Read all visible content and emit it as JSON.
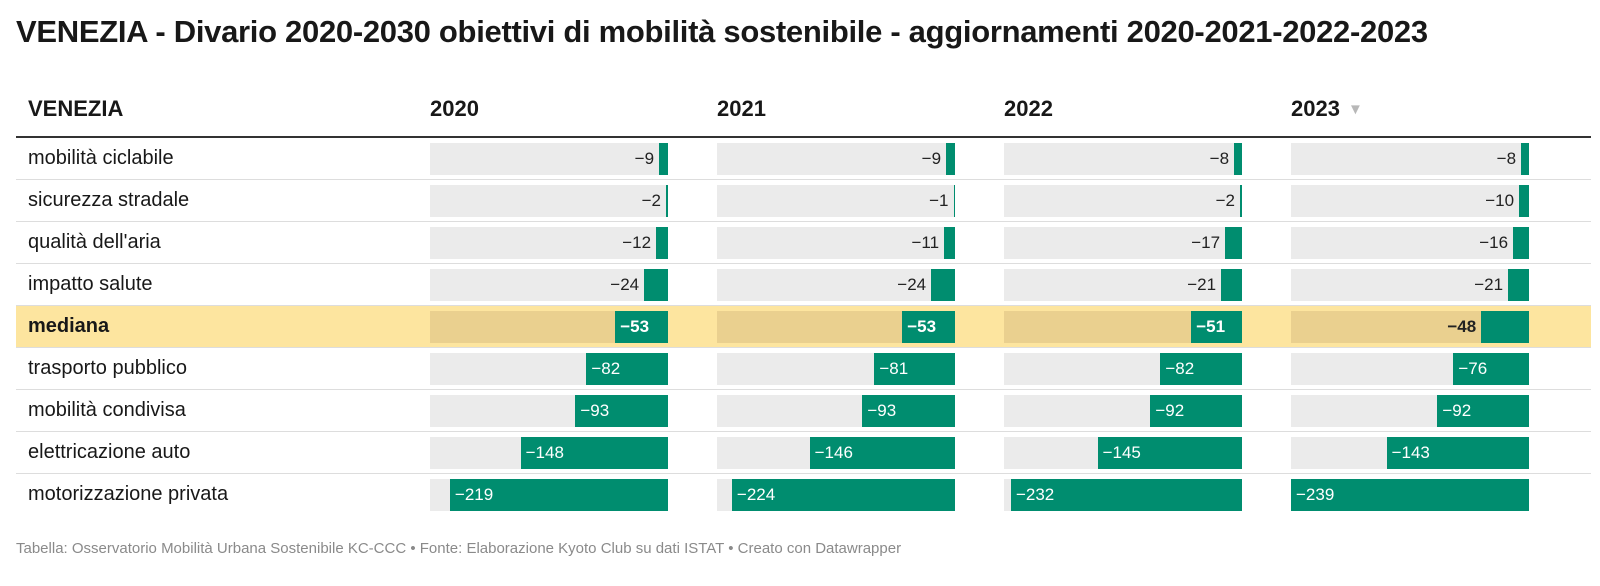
{
  "title": "VENEZIA - Divario 2020-2030 obiettivi di mobilità sostenibile - aggiornamenti 2020-2021-2022-2023",
  "footer": "Tabella: Osservatorio Mobilità Urbana Sostenibile KC-CCC • Fonte: Elaborazione Kyoto Club su dati ISTAT • Creato con Datawrapper",
  "colors": {
    "bar": "#008d6f",
    "bar_bg": "#ebebeb",
    "highlight": "#fde59f"
  },
  "sort_icon": "triangle-down-icon",
  "chart_data": {
    "type": "table",
    "row_header": "VENEZIA",
    "columns": [
      "2020",
      "2021",
      "2022",
      "2023"
    ],
    "sorted_column": "2023",
    "highlighted_row": "mediana",
    "bar_scale_max_abs": 239,
    "rows": [
      {
        "label": "mobilità ciclabile",
        "values": [
          -9,
          -9,
          -8,
          -8
        ]
      },
      {
        "label": "sicurezza stradale",
        "values": [
          -2,
          -1,
          -2,
          -10
        ]
      },
      {
        "label": "qualità dell'aria",
        "values": [
          -12,
          -11,
          -17,
          -16
        ]
      },
      {
        "label": "impatto salute",
        "values": [
          -24,
          -24,
          -21,
          -21
        ]
      },
      {
        "label": "mediana",
        "values": [
          -53,
          -53,
          -51,
          -48
        ]
      },
      {
        "label": "trasporto pubblico",
        "values": [
          -82,
          -81,
          -82,
          -76
        ]
      },
      {
        "label": "mobilità condivisa",
        "values": [
          -93,
          -93,
          -92,
          -92
        ]
      },
      {
        "label": "elettricazione auto",
        "values": [
          -148,
          -146,
          -145,
          -143
        ]
      },
      {
        "label": "motorizzazione privata",
        "values": [
          -219,
          -224,
          -232,
          -239
        ]
      }
    ]
  }
}
